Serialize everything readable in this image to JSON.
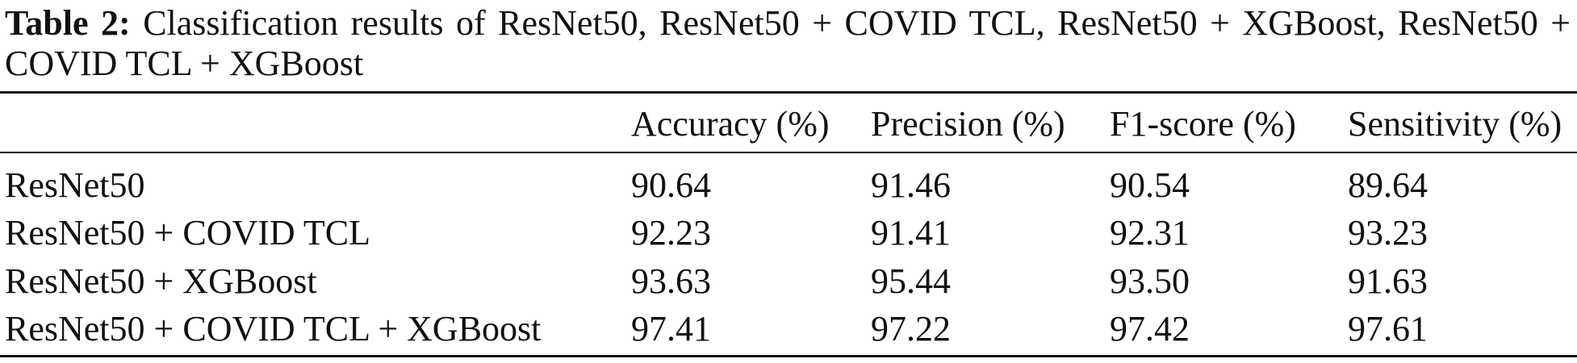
{
  "caption": {
    "label": "Table 2:",
    "text": "Classification results of ResNet50, ResNet50 + COVID TCL, ResNet50 + XGBoost, ResNet50 + COVID TCL + XGBoost"
  },
  "table": {
    "header": [
      "",
      "Accuracy (%)",
      "Precision (%)",
      "F1-score (%)",
      "Sensitivity (%)"
    ],
    "rows": [
      [
        "ResNet50",
        "90.64",
        "91.46",
        "90.54",
        "89.64"
      ],
      [
        "ResNet50 + COVID TCL",
        "92.23",
        "91.41",
        "92.31",
        "93.23"
      ],
      [
        "ResNet50 + XGBoost",
        "93.63",
        "95.44",
        "93.50",
        "91.63"
      ],
      [
        "ResNet50 + COVID TCL + XGBoost",
        "97.41",
        "97.22",
        "97.42",
        "97.61"
      ]
    ]
  }
}
